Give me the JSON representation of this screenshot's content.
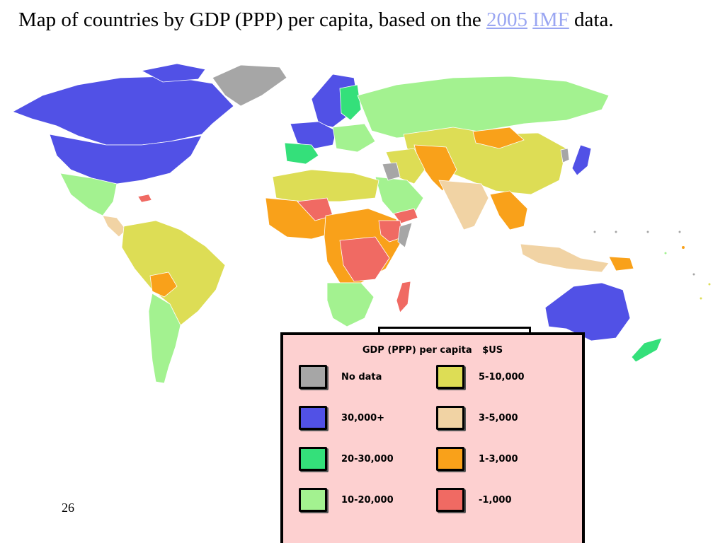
{
  "slide": {
    "title_text": "Map of countries by GDP (PPP) per capita, based on the",
    "title_link_year": "2005",
    "title_link_source": "IMF",
    "title_end": "data.",
    "page_number": "26"
  },
  "legend": {
    "title": "GDP (PPP) per capita",
    "unit": "$US",
    "items": [
      {
        "label": "No data",
        "color": "#a6a6a6"
      },
      {
        "label": "30,000+",
        "color": "#5151e6"
      },
      {
        "label": "20-30,000",
        "color": "#34e07a"
      },
      {
        "label": "10-20,000",
        "color": "#a3f290"
      },
      {
        "label": "5-10,000",
        "color": "#dddd55"
      },
      {
        "label": "3-5,000",
        "color": "#f1d3a4"
      },
      {
        "label": "1-3,000",
        "color": "#f9a11a"
      },
      {
        "label": "-1,000",
        "color": "#f06a63"
      }
    ]
  }
}
